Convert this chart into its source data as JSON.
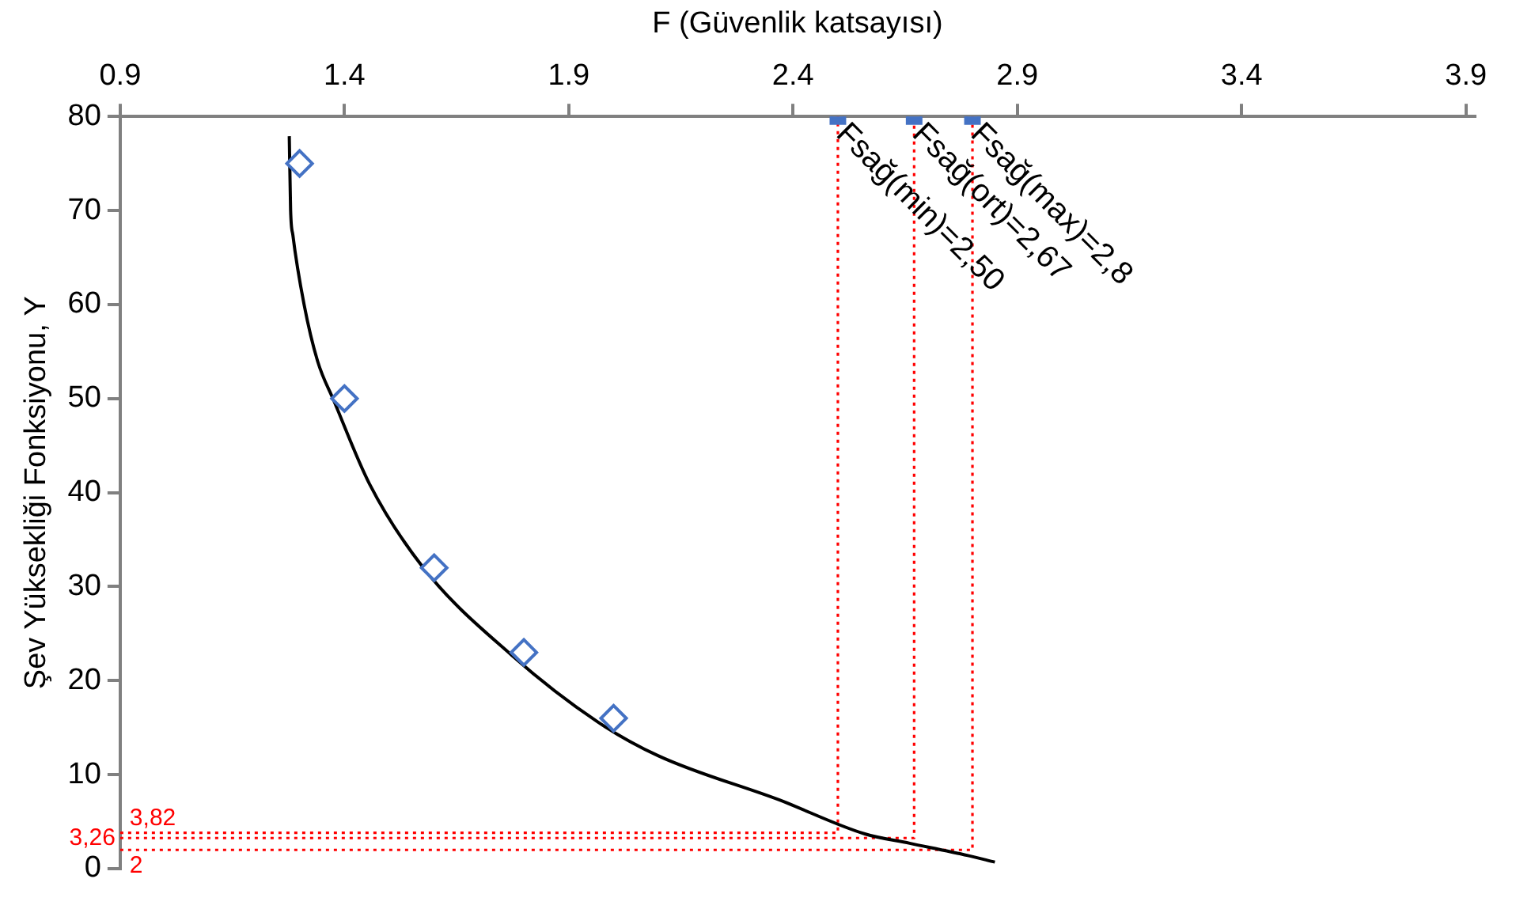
{
  "chart_data": {
    "type": "scatter",
    "xlabel": "F (Güvenlik katsayısı)",
    "ylabel": "Şev Yüksekliği Fonksiyonu, Y",
    "xlim": [
      0.9,
      3.92
    ],
    "xticks": [
      0.9,
      1.4,
      1.9,
      2.4,
      2.9,
      3.4,
      3.9
    ],
    "ylim": [
      0,
      80
    ],
    "yticks": [
      0,
      10,
      20,
      30,
      40,
      50,
      60,
      70,
      80
    ],
    "grid": false,
    "legend": false,
    "series": [
      {
        "type": "line",
        "marker": "none",
        "line_style": "solid",
        "color": "#000000",
        "x": [
          1.277,
          1.28,
          1.285,
          1.31,
          1.34,
          1.377,
          1.456,
          1.576,
          1.773,
          1.965,
          2.1,
          2.37,
          2.56,
          2.66,
          2.79,
          2.85
        ],
        "values": [
          77.9,
          70,
          67.4,
          60,
          54,
          49.7,
          40.9,
          32,
          22.7,
          15.6,
          12,
          7.3,
          3.7,
          2.7,
          1.4,
          0.7
        ]
      },
      {
        "type": "scatter",
        "marker": "diamond",
        "color": "#4472c4",
        "x": [
          1.3,
          1.4,
          1.6,
          1.8,
          2.0
        ],
        "values": [
          75,
          50,
          32,
          23,
          16
        ]
      },
      {
        "type": "line",
        "marker": "none",
        "line_style": "dotted",
        "color": "#ff0000",
        "x": [
          0.9,
          2.5,
          2.5
        ],
        "values": [
          3.82,
          3.82,
          80
        ]
      },
      {
        "type": "line",
        "marker": "none",
        "line_style": "dotted",
        "color": "#ff0000",
        "x": [
          0.9,
          2.67,
          2.67
        ],
        "values": [
          3.26,
          3.26,
          80
        ]
      },
      {
        "type": "line",
        "marker": "none",
        "line_style": "dotted",
        "color": "#ff0000",
        "x": [
          0.9,
          2.8,
          2.8
        ],
        "values": [
          2,
          2,
          80
        ]
      },
      {
        "type": "scatter",
        "marker": "square",
        "color": "#4472c4",
        "x": [
          2.5,
          2.67,
          2.8
        ],
        "values": [
          80,
          80,
          80
        ]
      }
    ],
    "annotations": [
      {
        "text": "3,82",
        "x": 0.9,
        "y": 3.82
      },
      {
        "text": "3,26",
        "x": 0.9,
        "y": 3.26
      },
      {
        "text": "2",
        "x": 0.9,
        "y": 2
      },
      {
        "text": "Fsağ(min)=2,50",
        "x": 2.5,
        "y": 80
      },
      {
        "text": "Fsağ(ort)=2,67",
        "x": 2.67,
        "y": 80
      },
      {
        "text": "Fsağ(max)=2,8",
        "x": 2.8,
        "y": 80
      }
    ]
  }
}
